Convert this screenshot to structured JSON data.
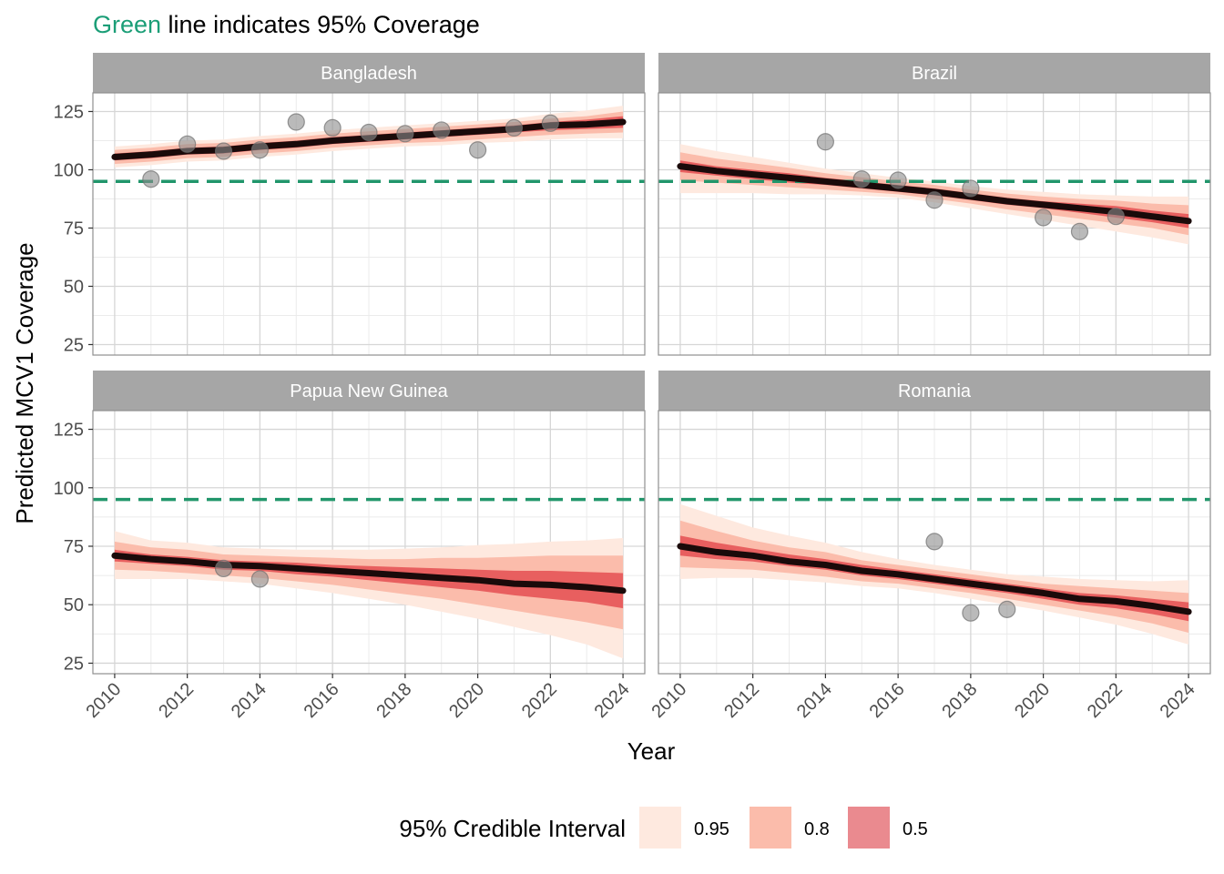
{
  "title": {
    "highlight": "Green",
    "rest": " line indicates 95% Coverage",
    "highlight_color": "#1b9e77"
  },
  "colors": {
    "ci95": "#fee9df",
    "ci80": "#fbbcab",
    "ci50": "#ea8a8f",
    "ci50_line": "#e85f5f",
    "median": "#1a0a0a",
    "reference": "#21966b",
    "points": "#8c8c8c",
    "strip": "#a6a6a6"
  },
  "chart_data": {
    "type": "line",
    "xlabel": "Year",
    "ylabel": "Predicted MCV1 Coverage",
    "xlim": [
      2009.4,
      2024.6
    ],
    "ylim": [
      20.5,
      133
    ],
    "x_ticks": [
      2010,
      2012,
      2014,
      2016,
      2018,
      2020,
      2022,
      2024
    ],
    "y_ticks": [
      25,
      50,
      75,
      100,
      125
    ],
    "reference_line": 95,
    "grid": true,
    "legend": {
      "title": "95% Credible Interval",
      "position": "bottom",
      "entries": [
        {
          "label": "0.95",
          "color": "#fee9df"
        },
        {
          "label": "0.8",
          "color": "#fbbcab"
        },
        {
          "label": "0.5",
          "color": "#ea8a8f"
        }
      ]
    },
    "panels": [
      {
        "name": "Bangladesh",
        "x": [
          2010,
          2011,
          2012,
          2013,
          2014,
          2015,
          2016,
          2017,
          2018,
          2019,
          2020,
          2021,
          2022,
          2023,
          2024
        ],
        "median": [
          105.5,
          106.5,
          108,
          108.5,
          110,
          111,
          112.5,
          113.5,
          114.5,
          115.5,
          116.5,
          117.5,
          119,
          119.5,
          120.5
        ],
        "ci50": {
          "lower": [
            104,
            105,
            106.5,
            107,
            108.5,
            109.5,
            111,
            112,
            113,
            114,
            115,
            116,
            117,
            117.5,
            118
          ],
          "upper": [
            107,
            108,
            109.5,
            110,
            111.5,
            112.5,
            114,
            115,
            116,
            117,
            118,
            119,
            120.5,
            121.5,
            123
          ]
        },
        "ci80": {
          "lower": [
            102.5,
            103.5,
            105,
            105.5,
            107,
            108,
            109.5,
            110.5,
            111.5,
            112,
            113,
            114,
            115,
            115.5,
            116
          ],
          "upper": [
            108.5,
            109.5,
            111,
            111.5,
            113,
            114,
            115.5,
            116.5,
            117.5,
            118.5,
            119.5,
            120.5,
            122,
            123,
            125
          ]
        },
        "ci95": {
          "lower": [
            101,
            102,
            103.5,
            104,
            105.5,
            106.5,
            108,
            109,
            110,
            110.5,
            111.5,
            112,
            113,
            113.5,
            113.5
          ],
          "upper": [
            110,
            111,
            112.5,
            113,
            114.5,
            115.5,
            117,
            118,
            119,
            120,
            121,
            122,
            124,
            125.5,
            127.5
          ]
        },
        "observed": {
          "x": [
            2011,
            2012,
            2013,
            2014,
            2015,
            2016,
            2017,
            2018,
            2019,
            2020,
            2021,
            2022
          ],
          "y": [
            96,
            111,
            108,
            108.5,
            120.5,
            118,
            116,
            115.5,
            117,
            108.5,
            118,
            120
          ]
        }
      },
      {
        "name": "Brazil",
        "x": [
          2010,
          2011,
          2012,
          2013,
          2014,
          2015,
          2016,
          2017,
          2018,
          2019,
          2020,
          2021,
          2022,
          2023,
          2024
        ],
        "median": [
          101.5,
          99.5,
          98,
          96.5,
          95,
          93.5,
          92,
          90.5,
          88.5,
          86.5,
          85,
          83.5,
          82,
          80,
          78
        ],
        "ci50": {
          "lower": [
            99,
            97.5,
            96,
            94.5,
            93.5,
            92,
            90.5,
            89,
            87,
            85,
            83.5,
            81.5,
            79.5,
            77.5,
            75
          ],
          "upper": [
            104,
            101.5,
            100,
            98.5,
            96.5,
            95,
            93.5,
            92,
            90,
            88,
            86.5,
            85.5,
            84.5,
            82.5,
            81
          ]
        },
        "ci80": {
          "lower": [
            95.5,
            94.5,
            93.5,
            92.5,
            91.5,
            90.5,
            89.5,
            87.5,
            85.5,
            83,
            81,
            79,
            77,
            75,
            72
          ]
        },
        "ci80_upper_placeholder": null,
        "ci95": {
          "lower": [
            90,
            90,
            90,
            89.5,
            89.5,
            89,
            88,
            86,
            83.5,
            81,
            78.5,
            76,
            73.5,
            71,
            68
          ],
          "upper": [
            111,
            108,
            105.5,
            103,
            100.5,
            98.5,
            96.5,
            95,
            93,
            91.5,
            90.5,
            89.5,
            89,
            88.5,
            88.5
          ]
        },
        "observed": {
          "x": [
            2014,
            2015,
            2016,
            2017,
            2018,
            2020,
            2021,
            2022
          ],
          "y": [
            112,
            96,
            95.5,
            87,
            92,
            79.5,
            73.5,
            80
          ]
        }
      },
      {
        "name": "Papua New Guinea",
        "x": [
          2010,
          2011,
          2012,
          2013,
          2014,
          2015,
          2016,
          2017,
          2018,
          2019,
          2020,
          2021,
          2022,
          2023,
          2024
        ],
        "median": [
          71,
          69.5,
          68.5,
          67,
          66.5,
          65.5,
          64.5,
          63.5,
          62.5,
          61.5,
          60.5,
          59,
          58.5,
          57.5,
          56
        ],
        "ci50": {
          "lower": [
            68.5,
            67.5,
            66.5,
            65,
            64.5,
            63,
            62,
            60.5,
            59,
            57.5,
            56,
            54,
            52.5,
            51,
            48.5
          ],
          "upper": [
            73.5,
            71.5,
            70.5,
            69,
            68.5,
            68,
            67,
            66.5,
            66,
            65.5,
            65,
            64.5,
            64.5,
            64,
            63.5
          ]
        },
        "ci80": {
          "lower": [
            65,
            64.5,
            63.5,
            62.5,
            61.5,
            60,
            58.5,
            56.5,
            54.5,
            52.5,
            50,
            47.5,
            45,
            42.5,
            39.5
          ],
          "upper": [
            77,
            74.5,
            73.5,
            71.5,
            71,
            70.5,
            70,
            69.5,
            69.5,
            70,
            70,
            70.5,
            71,
            71,
            71
          ]
        },
        "ci95": {
          "lower": [
            61,
            61,
            61,
            60,
            59,
            57,
            55,
            52.5,
            50,
            47,
            44,
            40.5,
            37,
            33,
            27
          ],
          "upper": [
            81.5,
            77.5,
            76.5,
            74.5,
            74,
            73.5,
            73.5,
            73.5,
            74,
            74.5,
            75.5,
            76,
            77,
            77.5,
            78.5
          ]
        },
        "observed": {
          "x": [
            2013,
            2014
          ],
          "y": [
            65.5,
            61
          ]
        }
      },
      {
        "name": "Romania",
        "x": [
          2010,
          2011,
          2012,
          2013,
          2014,
          2015,
          2016,
          2017,
          2018,
          2019,
          2020,
          2021,
          2022,
          2023,
          2024
        ],
        "median": [
          75,
          72.5,
          71,
          68.5,
          67,
          64.5,
          63,
          61,
          59,
          57,
          55,
          52.5,
          51.5,
          49.5,
          47
        ],
        "ci50": {
          "lower": [
            71,
            69.5,
            68.5,
            66.5,
            65,
            62.5,
            61,
            59,
            57,
            55,
            52.5,
            50,
            48.5,
            46,
            43
          ],
          "upper": [
            79.5,
            76.5,
            74,
            71.5,
            69.5,
            67,
            65,
            63,
            61,
            59,
            57,
            55,
            54,
            52.5,
            51
          ]
        },
        "ci80": {
          "lower": [
            66,
            65.5,
            65,
            63.5,
            62,
            60,
            59,
            57,
            55,
            52.5,
            50,
            47.5,
            45,
            42,
            38
          ],
          "upper": [
            86,
            81.5,
            77.5,
            74.5,
            72.5,
            69,
            67,
            65,
            63,
            61,
            59,
            58,
            57,
            56,
            55
          ]
        },
        "ci95": {
          "lower": [
            61,
            61.5,
            61.5,
            60.5,
            59.5,
            58,
            57,
            55,
            52.5,
            50,
            47.5,
            44.5,
            41.5,
            37.5,
            33
          ],
          "upper": [
            93,
            88,
            83,
            79.5,
            76.5,
            72.5,
            69.5,
            67,
            65,
            63,
            62,
            61,
            60.5,
            60,
            60.5
          ]
        },
        "observed": {
          "x": [
            2017,
            2018,
            2019
          ],
          "y": [
            77,
            46.5,
            48
          ]
        }
      }
    ]
  }
}
